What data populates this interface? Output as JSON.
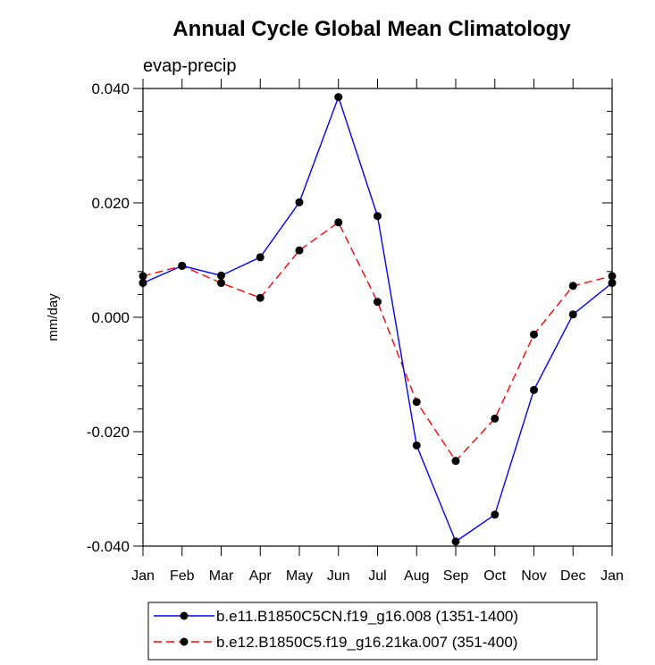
{
  "chart_data": {
    "type": "line",
    "title": "Annual Cycle Global Mean Climatology",
    "subtitle": "evap-precip",
    "xlabel": "",
    "ylabel": "mm/day",
    "categories": [
      "Jan",
      "Feb",
      "Mar",
      "Apr",
      "May",
      "Jun",
      "Jul",
      "Aug",
      "Sep",
      "Oct",
      "Nov",
      "Dec",
      "Jan"
    ],
    "ylim": [
      -0.04,
      0.04
    ],
    "yticks": [
      "-0.040",
      "-0.020",
      "0.000",
      "0.020",
      "0.040"
    ],
    "grid": false,
    "legend_position": "bottom",
    "series": [
      {
        "name": "b.e11.B1850C5CN.f19_g16.008 (1351-1400)",
        "color": "#0000ff",
        "line_style": "solid",
        "marker": "filled-circle",
        "values": [
          0.006,
          0.009,
          0.0073,
          0.0105,
          0.0201,
          0.0385,
          0.0177,
          -0.0224,
          -0.0392,
          -0.0345,
          -0.0127,
          0.0005,
          0.006
        ]
      },
      {
        "name": "b.e12.B1850C5.f19_g16.21ka.007 (351-400)",
        "color": "#ff0000",
        "line_style": "dashed",
        "marker": "filled-circle",
        "values": [
          0.0072,
          0.009,
          0.006,
          0.0034,
          0.0117,
          0.0166,
          0.0027,
          -0.0148,
          -0.0251,
          -0.0177,
          -0.003,
          0.0055,
          0.0072
        ]
      }
    ]
  }
}
